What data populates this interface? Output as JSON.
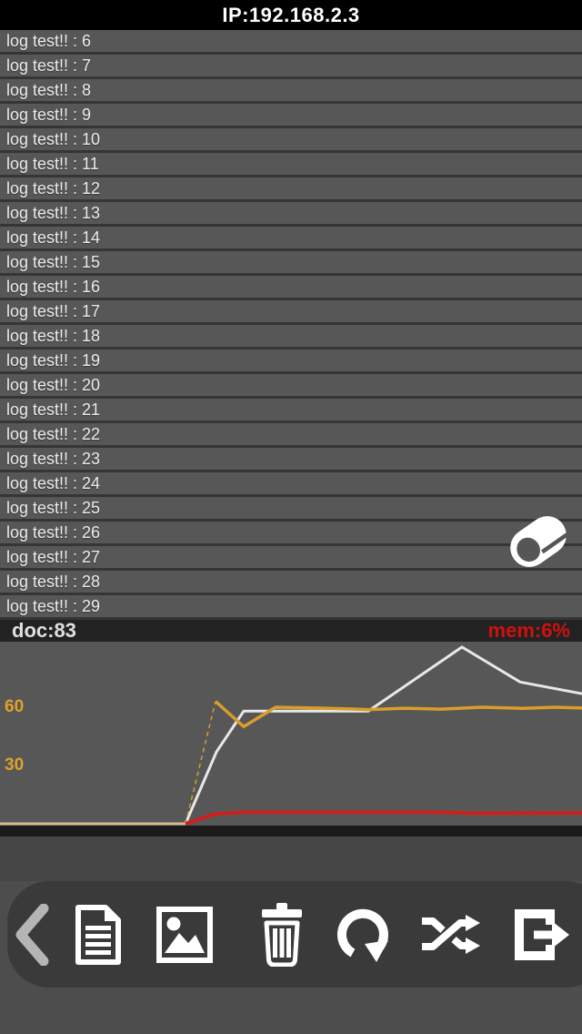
{
  "header": {
    "title": "IP:192.168.2.3"
  },
  "log_list": {
    "items": [
      "log test!! : 6",
      "log test!! : 7",
      "log test!! : 8",
      "log test!! : 9",
      "log test!! : 10",
      "log test!! : 11",
      "log test!! : 12",
      "log test!! : 13",
      "log test!! : 14",
      "log test!! : 15",
      "log test!! : 16",
      "log test!! : 17",
      "log test!! : 18",
      "log test!! : 19",
      "log test!! : 20",
      "log test!! : 21",
      "log test!! : 22",
      "log test!! : 23",
      "log test!! : 24",
      "log test!! : 25",
      "log test!! : 26",
      "log test!! : 27",
      "log test!! : 28",
      "log test!! : 29"
    ]
  },
  "status_bar": {
    "doc_label": "doc:83",
    "mem_label": "mem:6%",
    "mem_color": "#d01010"
  },
  "chart_data": {
    "type": "line",
    "title": "",
    "xlabel": "",
    "ylabel": "",
    "grid": false,
    "legend": false,
    "y_axis": {
      "ticks": [
        {
          "label": "60",
          "value": 60
        },
        {
          "label": "30",
          "value": 30
        }
      ],
      "tick_color": "#dfa02c",
      "baseline_value": 0
    },
    "series": [
      {
        "name": "baseline-tan",
        "color": "#d9b78b",
        "width": 3,
        "points": [
          [
            0,
            0
          ],
          [
            204,
            0
          ]
        ]
      },
      {
        "name": "white-line",
        "color": "#e8e8e8",
        "width": 3,
        "points": [
          [
            204,
            0
          ],
          [
            238,
            37
          ],
          [
            268,
            58
          ],
          [
            405,
            58
          ],
          [
            508,
            91
          ],
          [
            572,
            73
          ],
          [
            640,
            67
          ]
        ]
      },
      {
        "name": "orange-line-rise",
        "color": "#d99d2b",
        "width": 1.5,
        "dash": "5,4",
        "points": [
          [
            204,
            0
          ],
          [
            237,
            63
          ]
        ]
      },
      {
        "name": "orange-line",
        "color": "#d99d2b",
        "width": 3.5,
        "points": [
          [
            237,
            63
          ],
          [
            268,
            50
          ],
          [
            303,
            60
          ],
          [
            360,
            59.5
          ],
          [
            405,
            58.8
          ],
          [
            445,
            59.5
          ],
          [
            485,
            59
          ],
          [
            530,
            60
          ],
          [
            575,
            59.4
          ],
          [
            610,
            60
          ],
          [
            640,
            59.6
          ]
        ]
      },
      {
        "name": "red-line",
        "color": "#cf1e1e",
        "width": 4,
        "points": [
          [
            204,
            0
          ],
          [
            236,
            5
          ],
          [
            272,
            6
          ],
          [
            470,
            6
          ],
          [
            525,
            5.4
          ],
          [
            640,
            5.6
          ]
        ]
      }
    ]
  },
  "toolbar": {
    "buttons": [
      {
        "icon": "back-chevron-icon"
      },
      {
        "icon": "document-icon"
      },
      {
        "icon": "image-icon"
      },
      {
        "icon": "trash-icon"
      },
      {
        "icon": "rotate-clockwise-icon"
      },
      {
        "icon": "shuffle-icon"
      },
      {
        "icon": "export-icon"
      }
    ]
  },
  "overlay": {
    "icon": "eraser-icon"
  },
  "colors": {
    "header_bg": "#000000",
    "row_bg": "#575757",
    "chart_bg": "#575757",
    "toolbar_bg": "#3a3a3a",
    "accent_orange": "#dfa02c"
  }
}
